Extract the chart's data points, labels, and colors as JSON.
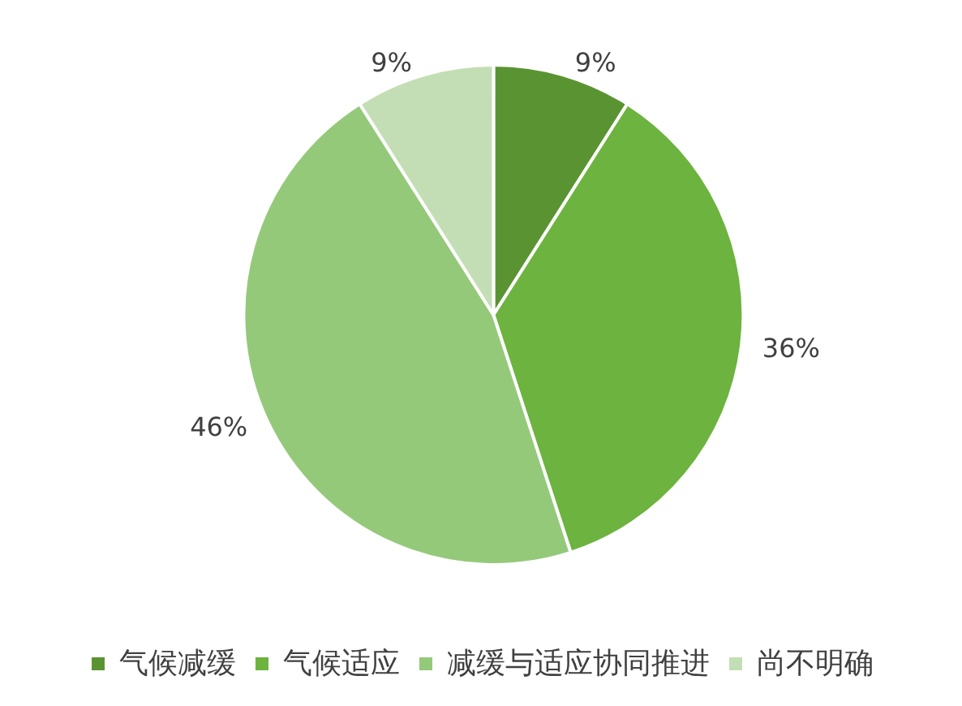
{
  "chart_data": {
    "type": "pie",
    "categories": [
      "气候减缓",
      "气候适应",
      "减缓与适应协同推进",
      "尚不明确"
    ],
    "values": [
      9,
      36,
      46,
      9
    ],
    "colors": [
      "#5a9432",
      "#6db33f",
      "#95c97a",
      "#c3deb4"
    ],
    "value_labels": [
      "9%",
      "36%",
      "46%",
      "9%"
    ],
    "legend": "bottom"
  }
}
